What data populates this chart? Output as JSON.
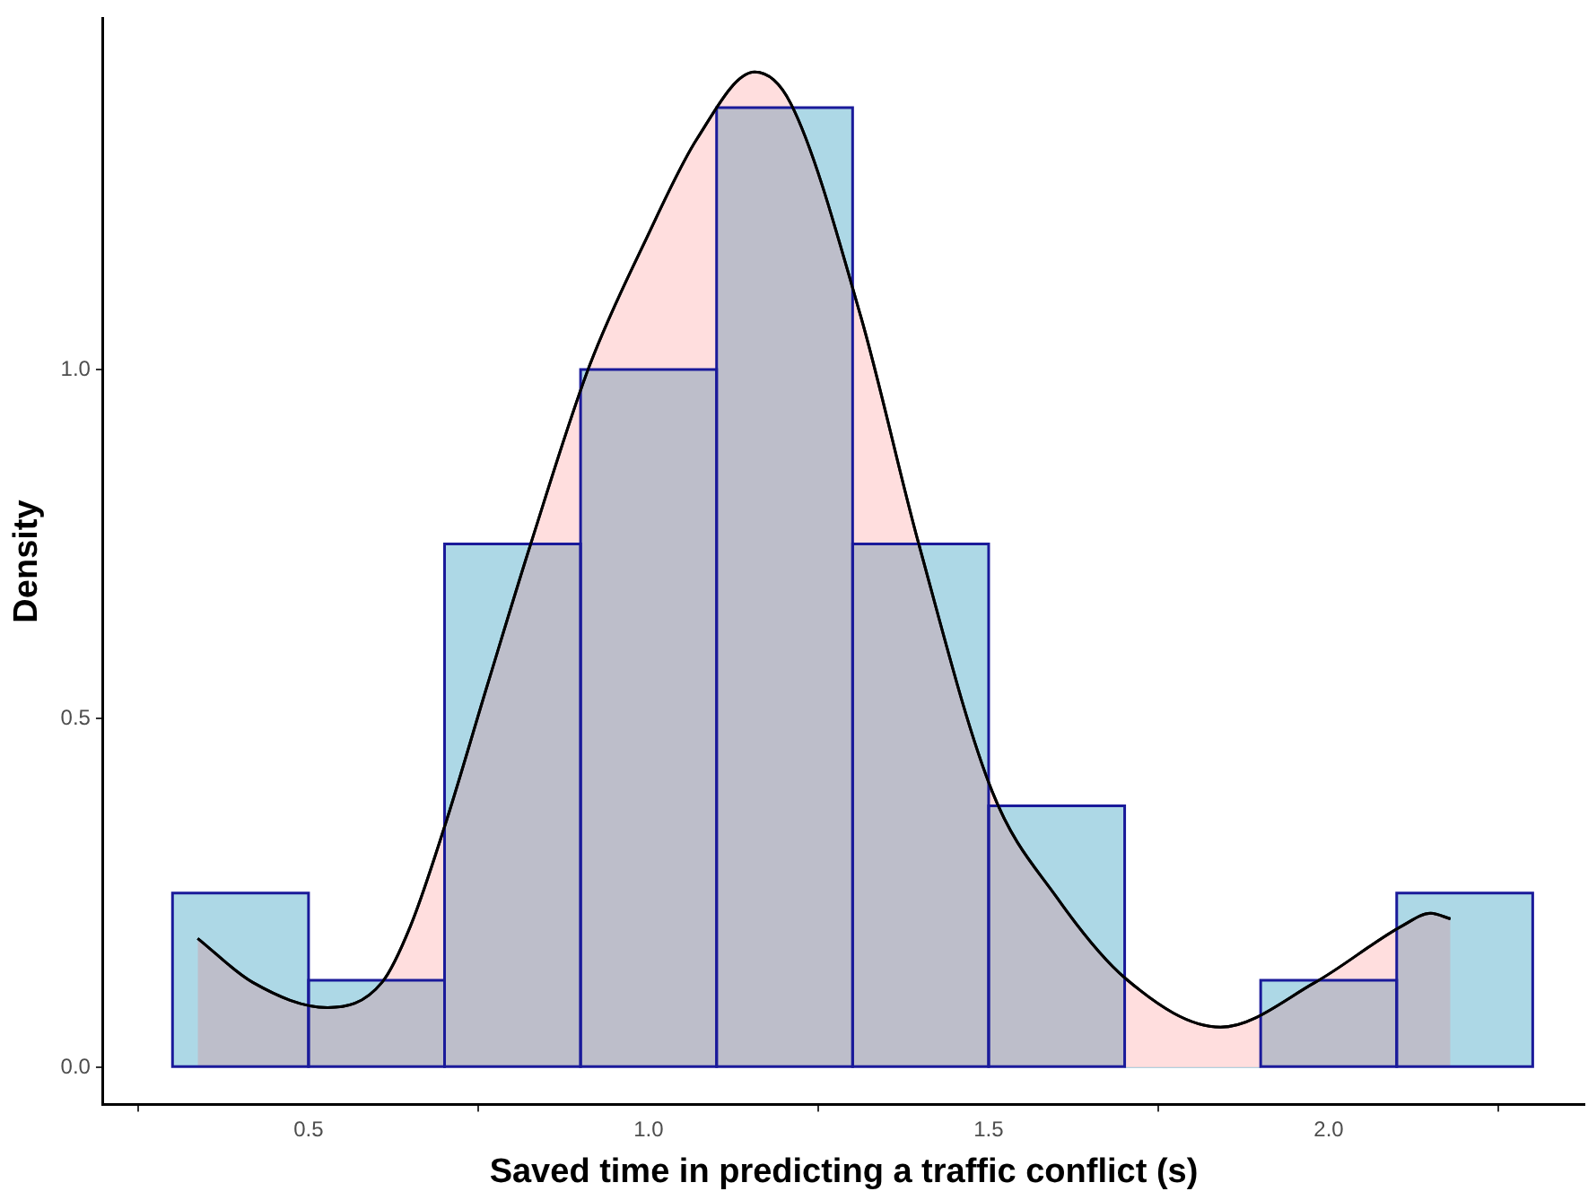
{
  "chart_data": {
    "type": "histogram",
    "xlabel": "Saved time in predicting a traffic conflict (s)",
    "ylabel": "Density",
    "bins": [
      0.3,
      0.5,
      0.7,
      0.9,
      1.1,
      1.3,
      1.5,
      1.7,
      1.9,
      2.1,
      2.3
    ],
    "color": "#add8e6",
    "values": [
      0.25,
      0.125,
      0.75,
      1.0,
      1.375,
      0.75,
      0.375,
      0,
      0.125,
      0.25
    ],
    "series": [
      {
        "type": "area",
        "color": "#ff5a5a",
        "x": [
          0.337,
          0.418,
          0.528,
          0.608,
          0.65,
          0.7,
          0.763,
          0.827,
          0.913,
          0.997,
          1.071,
          1.156,
          1.209,
          1.312,
          1.397,
          1.505,
          1.6,
          1.702,
          1.841,
          1.98,
          2.108,
          2.15,
          2.179
        ],
        "values": [
          0.185,
          0.122,
          0.086,
          0.122,
          0.203,
          0.345,
          0.548,
          0.751,
          1.005,
          1.188,
          1.33,
          1.426,
          1.381,
          1.076,
          0.751,
          0.396,
          0.244,
          0.127,
          0.058,
          0.122,
          0.203,
          0.221,
          0.213
        ]
      }
    ],
    "xlim": [
      0.198,
      2.376
    ],
    "ylim": [
      -0.053,
      1.503
    ],
    "xticks": [
      {
        "value": 0.5,
        "label": "0.5"
      },
      {
        "value": 1.0,
        "label": "1.0"
      },
      {
        "value": 1.5,
        "label": "1.5"
      },
      {
        "value": 2.0,
        "label": "2.0"
      }
    ],
    "yticks": [
      {
        "value": 0,
        "label": "0.0"
      },
      {
        "value": 0.5,
        "label": "0.5"
      },
      {
        "value": 1.0,
        "label": "1.0"
      }
    ],
    "grid": false,
    "legend": false
  }
}
